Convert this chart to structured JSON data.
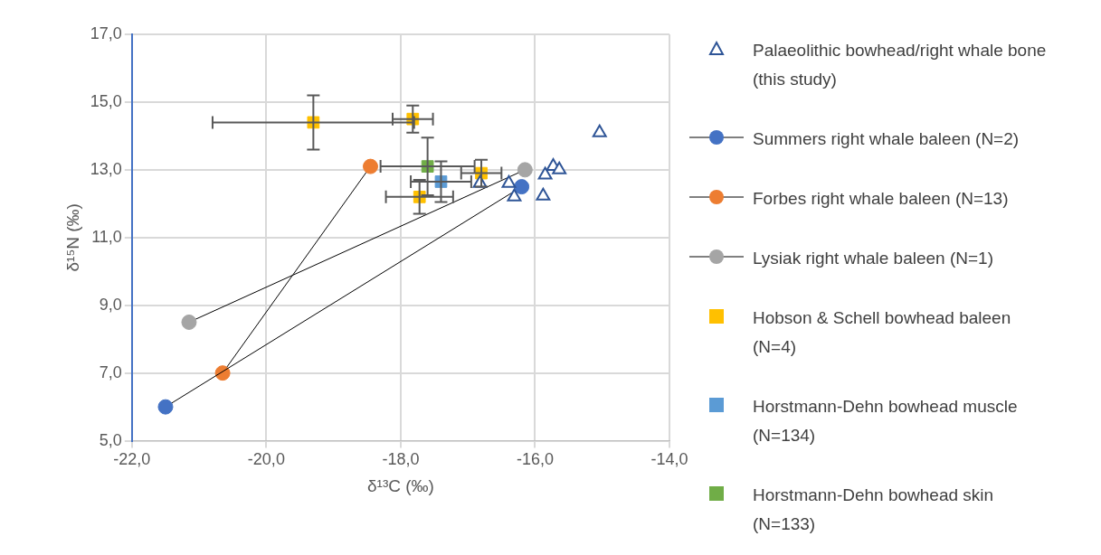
{
  "chart_data": {
    "type": "scatter",
    "xlabel": "δ¹³C (‰)",
    "ylabel": "δ¹⁵N (‰)",
    "xlim": [
      -22,
      -14
    ],
    "xticks": [
      {
        "value": -22,
        "label": "-22,0"
      },
      {
        "value": -20,
        "label": "-20,0"
      },
      {
        "value": -18,
        "label": "-18,0"
      },
      {
        "value": -16,
        "label": "-16,0"
      },
      {
        "value": -14,
        "label": "-14,0"
      }
    ],
    "ylim": [
      5,
      17
    ],
    "yticks": [
      {
        "value": 5,
        "label": "5,0"
      },
      {
        "value": 7,
        "label": "7,0"
      },
      {
        "value": 9,
        "label": "9,0"
      },
      {
        "value": 11,
        "label": "11,0"
      },
      {
        "value": 13,
        "label": "13,0"
      },
      {
        "value": 15,
        "label": "15,0"
      },
      {
        "value": 17,
        "label": "17,0"
      }
    ],
    "grid": true,
    "legend": "right",
    "series": [
      {
        "name": "Palaeolithic bowhead/right whale bone (this study)",
        "type": "scatter",
        "marker": "triangle",
        "color": "#2f5597",
        "x": [
          -16.82,
          -16.39,
          -16.31,
          -15.88,
          -15.85,
          -15.73,
          -15.64,
          -15.04
        ],
        "values": [
          12.6,
          12.6,
          12.2,
          12.23,
          12.85,
          13.1,
          13.0,
          14.1
        ]
      },
      {
        "name": "Summers right whale baleen (N=2)",
        "type": "line",
        "marker": "circle",
        "color": "#4472c4",
        "x": [
          -21.5,
          -16.2
        ],
        "values": [
          6.0,
          12.5
        ]
      },
      {
        "name": "Forbes right whale baleen (N=13)",
        "type": "line",
        "marker": "circle",
        "color": "#ed7d31",
        "x": [
          -20.65,
          -18.45
        ],
        "values": [
          7.0,
          13.1
        ]
      },
      {
        "name": "Lysiak right whale baleen (N=1)",
        "type": "line",
        "marker": "circle",
        "color": "#a5a5a5",
        "x": [
          -21.15,
          -16.15
        ],
        "values": [
          8.5,
          13.0
        ]
      },
      {
        "name": "Hobson & Schell bowhead baleen (N=4)",
        "type": "scatter",
        "marker": "square",
        "color": "#ffc000",
        "x": [
          -19.3,
          -17.82,
          -16.8,
          -17.72
        ],
        "values": [
          14.4,
          14.5,
          12.9,
          12.2
        ],
        "errors": [
          0.8,
          0.4,
          0.4,
          0.5
        ],
        "xerrors": [
          1.5,
          0.3,
          0.3,
          0.5
        ]
      },
      {
        "name": "Horstmann-Dehn bowhead muscle (N=134)",
        "type": "scatter",
        "marker": "square",
        "color": "#5b9bd5",
        "x": [
          -17.4
        ],
        "values": [
          12.65
        ],
        "errors": [
          0.6
        ],
        "xerrors": [
          0.45
        ]
      },
      {
        "name": "Horstmann-Dehn bowhead skin (N=133)",
        "type": "scatter",
        "marker": "square",
        "color": "#70ad47",
        "x": [
          -17.6
        ],
        "values": [
          13.1
        ],
        "errors": [
          0.85
        ],
        "xerrors": [
          0.7
        ]
      }
    ]
  }
}
